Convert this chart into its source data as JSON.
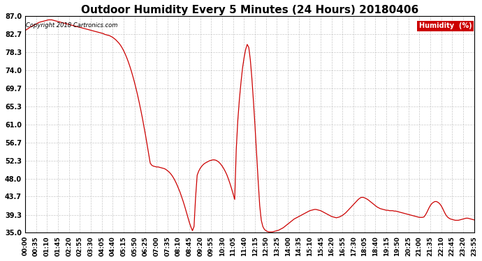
{
  "title": "Outdoor Humidity Every 5 Minutes (24 Hours) 20180406",
  "copyright_text": "Copyright 2018 Cartronics.com",
  "legend_label": "Humidity  (%)",
  "legend_bg": "#cc0000",
  "legend_fg": "#ffffff",
  "line_color": "#cc0000",
  "background_color": "#ffffff",
  "grid_color": "#bbbbbb",
  "yticks": [
    35.0,
    39.3,
    43.7,
    48.0,
    52.3,
    56.7,
    61.0,
    65.3,
    69.7,
    74.0,
    78.3,
    82.7,
    87.0
  ],
  "ylim": [
    35.0,
    87.0
  ],
  "title_fontsize": 11,
  "axis_fontsize": 7,
  "humidity_data": [
    83.5,
    83.8,
    84.0,
    84.3,
    84.5,
    84.7,
    84.9,
    85.1,
    85.3,
    85.5,
    85.6,
    85.7,
    85.8,
    85.9,
    86.0,
    86.1,
    86.1,
    86.1,
    86.0,
    85.9,
    85.8,
    85.7,
    85.6,
    85.5,
    85.4,
    85.3,
    85.2,
    85.1,
    85.0,
    84.9,
    84.8,
    84.7,
    84.6,
    84.5,
    84.4,
    84.3,
    84.2,
    84.1,
    84.0,
    83.9,
    83.8,
    83.7,
    83.6,
    83.5,
    83.4,
    83.3,
    83.2,
    83.1,
    83.0,
    82.9,
    82.8,
    82.6,
    82.5,
    82.4,
    82.3,
    82.1,
    81.9,
    81.6,
    81.3,
    80.9,
    80.5,
    80.0,
    79.4,
    78.7,
    77.9,
    77.0,
    76.0,
    74.9,
    73.7,
    72.4,
    71.0,
    69.5,
    67.9,
    66.2,
    64.4,
    62.5,
    60.5,
    58.4,
    56.2,
    53.9,
    51.7,
    51.2,
    51.0,
    50.9,
    50.8,
    50.8,
    50.7,
    50.6,
    50.5,
    50.4,
    50.2,
    49.9,
    49.6,
    49.2,
    48.7,
    48.1,
    47.4,
    46.6,
    45.7,
    44.8,
    43.7,
    42.6,
    41.4,
    40.1,
    38.8,
    37.5,
    36.4,
    35.5,
    36.5,
    43.5,
    48.8,
    49.8,
    50.5,
    51.0,
    51.4,
    51.7,
    51.9,
    52.1,
    52.3,
    52.4,
    52.5,
    52.5,
    52.4,
    52.2,
    51.9,
    51.5,
    51.0,
    50.4,
    49.7,
    48.9,
    47.9,
    46.8,
    45.6,
    44.3,
    43.0,
    55.0,
    62.0,
    67.0,
    71.0,
    74.5,
    77.0,
    79.0,
    80.2,
    79.5,
    76.5,
    72.0,
    66.5,
    60.5,
    54.0,
    47.5,
    41.5,
    38.0,
    36.5,
    35.8,
    35.5,
    35.3,
    35.2,
    35.2,
    35.2,
    35.3,
    35.4,
    35.5,
    35.6,
    35.8,
    36.0,
    36.2,
    36.5,
    36.8,
    37.1,
    37.4,
    37.7,
    38.0,
    38.3,
    38.5,
    38.7,
    38.9,
    39.1,
    39.3,
    39.5,
    39.7,
    39.9,
    40.1,
    40.3,
    40.4,
    40.5,
    40.6,
    40.6,
    40.5,
    40.4,
    40.3,
    40.1,
    39.9,
    39.7,
    39.5,
    39.3,
    39.1,
    38.9,
    38.8,
    38.7,
    38.6,
    38.7,
    38.8,
    39.0,
    39.2,
    39.5,
    39.8,
    40.2,
    40.6,
    41.0,
    41.4,
    41.8,
    42.2,
    42.6,
    43.0,
    43.3,
    43.5,
    43.5,
    43.4,
    43.2,
    43.0,
    42.7,
    42.4,
    42.1,
    41.8,
    41.5,
    41.2,
    41.0,
    40.8,
    40.7,
    40.6,
    40.5,
    40.4,
    40.4,
    40.3,
    40.3,
    40.3,
    40.2,
    40.2,
    40.1,
    40.0,
    39.9,
    39.8,
    39.7,
    39.6,
    39.5,
    39.4,
    39.3,
    39.2,
    39.1,
    39.0,
    38.9,
    38.8,
    38.7,
    38.7,
    38.7,
    38.8,
    39.3,
    40.0,
    40.8,
    41.5,
    42.0,
    42.3,
    42.5,
    42.5,
    42.3,
    42.0,
    41.5,
    40.8,
    40.0,
    39.3,
    38.8,
    38.5,
    38.3,
    38.2,
    38.1,
    38.0,
    38.0,
    38.0,
    38.1,
    38.2,
    38.3,
    38.4,
    38.5,
    38.5,
    38.4,
    38.3,
    38.2,
    38.1,
    39.0,
    39.3,
    39.5,
    39.3
  ]
}
